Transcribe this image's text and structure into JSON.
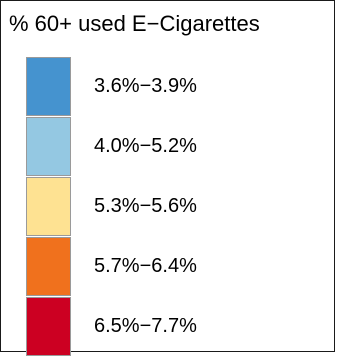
{
  "chart_data": {
    "type": "legend",
    "title": "% 60+ used E−Cigarettes",
    "items": [
      {
        "label": "3.6%−3.9%",
        "range": [
          3.6,
          3.9
        ],
        "color": "#4593cf"
      },
      {
        "label": "4.0%−5.2%",
        "range": [
          4.0,
          5.2
        ],
        "color": "#94c8e2"
      },
      {
        "label": "5.3%−5.6%",
        "range": [
          5.3,
          5.6
        ],
        "color": "#fee292"
      },
      {
        "label": "5.7%−6.4%",
        "range": [
          5.7,
          6.4
        ],
        "color": "#f0711d"
      },
      {
        "label": "6.5%−7.7%",
        "range": [
          6.5,
          7.7
        ],
        "color": "#cc0022"
      }
    ]
  }
}
